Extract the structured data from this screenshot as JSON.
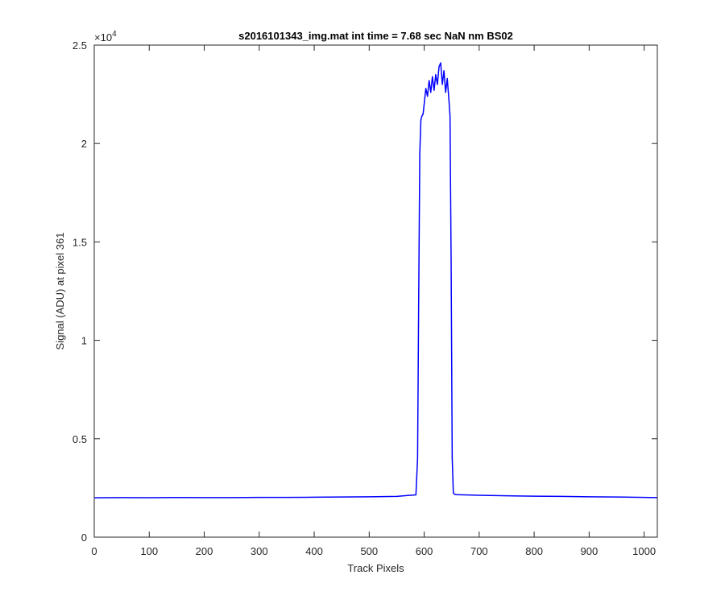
{
  "chart_data": {
    "type": "line",
    "title": "s2016101343_img.mat int time = 7.68 sec  NaN nm BS02",
    "xlabel": "Track Pixels",
    "ylabel": "Signal (ADU) at pixel 361",
    "xlim": [
      0,
      1024
    ],
    "ylim": [
      0,
      25000
    ],
    "xticks": [
      0,
      100,
      200,
      300,
      400,
      500,
      600,
      700,
      800,
      900,
      1000
    ],
    "xtick_labels": [
      "0",
      "100",
      "200",
      "300",
      "400",
      "500",
      "600",
      "700",
      "800",
      "900",
      "1000"
    ],
    "yticks": [
      0,
      5000,
      10000,
      15000,
      20000,
      25000
    ],
    "ytick_labels": [
      "0",
      "0.5",
      "1",
      "1.5",
      "2",
      "2.5"
    ],
    "y_multiplier": "×10",
    "y_exponent": "4",
    "grid": false,
    "legend": "none",
    "series": [
      {
        "color": "#0000ff",
        "x": [
          0,
          50,
          100,
          150,
          200,
          250,
          300,
          350,
          400,
          450,
          500,
          550,
          585,
          588,
          590,
          592,
          594,
          596,
          598,
          600,
          603,
          606,
          609,
          612,
          615,
          618,
          621,
          624,
          627,
          630,
          633,
          636,
          639,
          642,
          645,
          647,
          649,
          651,
          653,
          655,
          660,
          700,
          750,
          800,
          850,
          900,
          950,
          1000,
          1024
        ],
        "y": [
          2000,
          2010,
          2005,
          2015,
          2010,
          2010,
          2020,
          2020,
          2030,
          2040,
          2050,
          2070,
          2150,
          4000,
          12000,
          19500,
          21200,
          21400,
          21500,
          22000,
          22800,
          22400,
          23200,
          22600,
          23400,
          22700,
          23500,
          23000,
          23900,
          24100,
          23000,
          23700,
          22600,
          23300,
          22200,
          21400,
          14000,
          4000,
          2250,
          2180,
          2160,
          2130,
          2100,
          2080,
          2070,
          2050,
          2040,
          2020,
          2010
        ]
      }
    ]
  }
}
